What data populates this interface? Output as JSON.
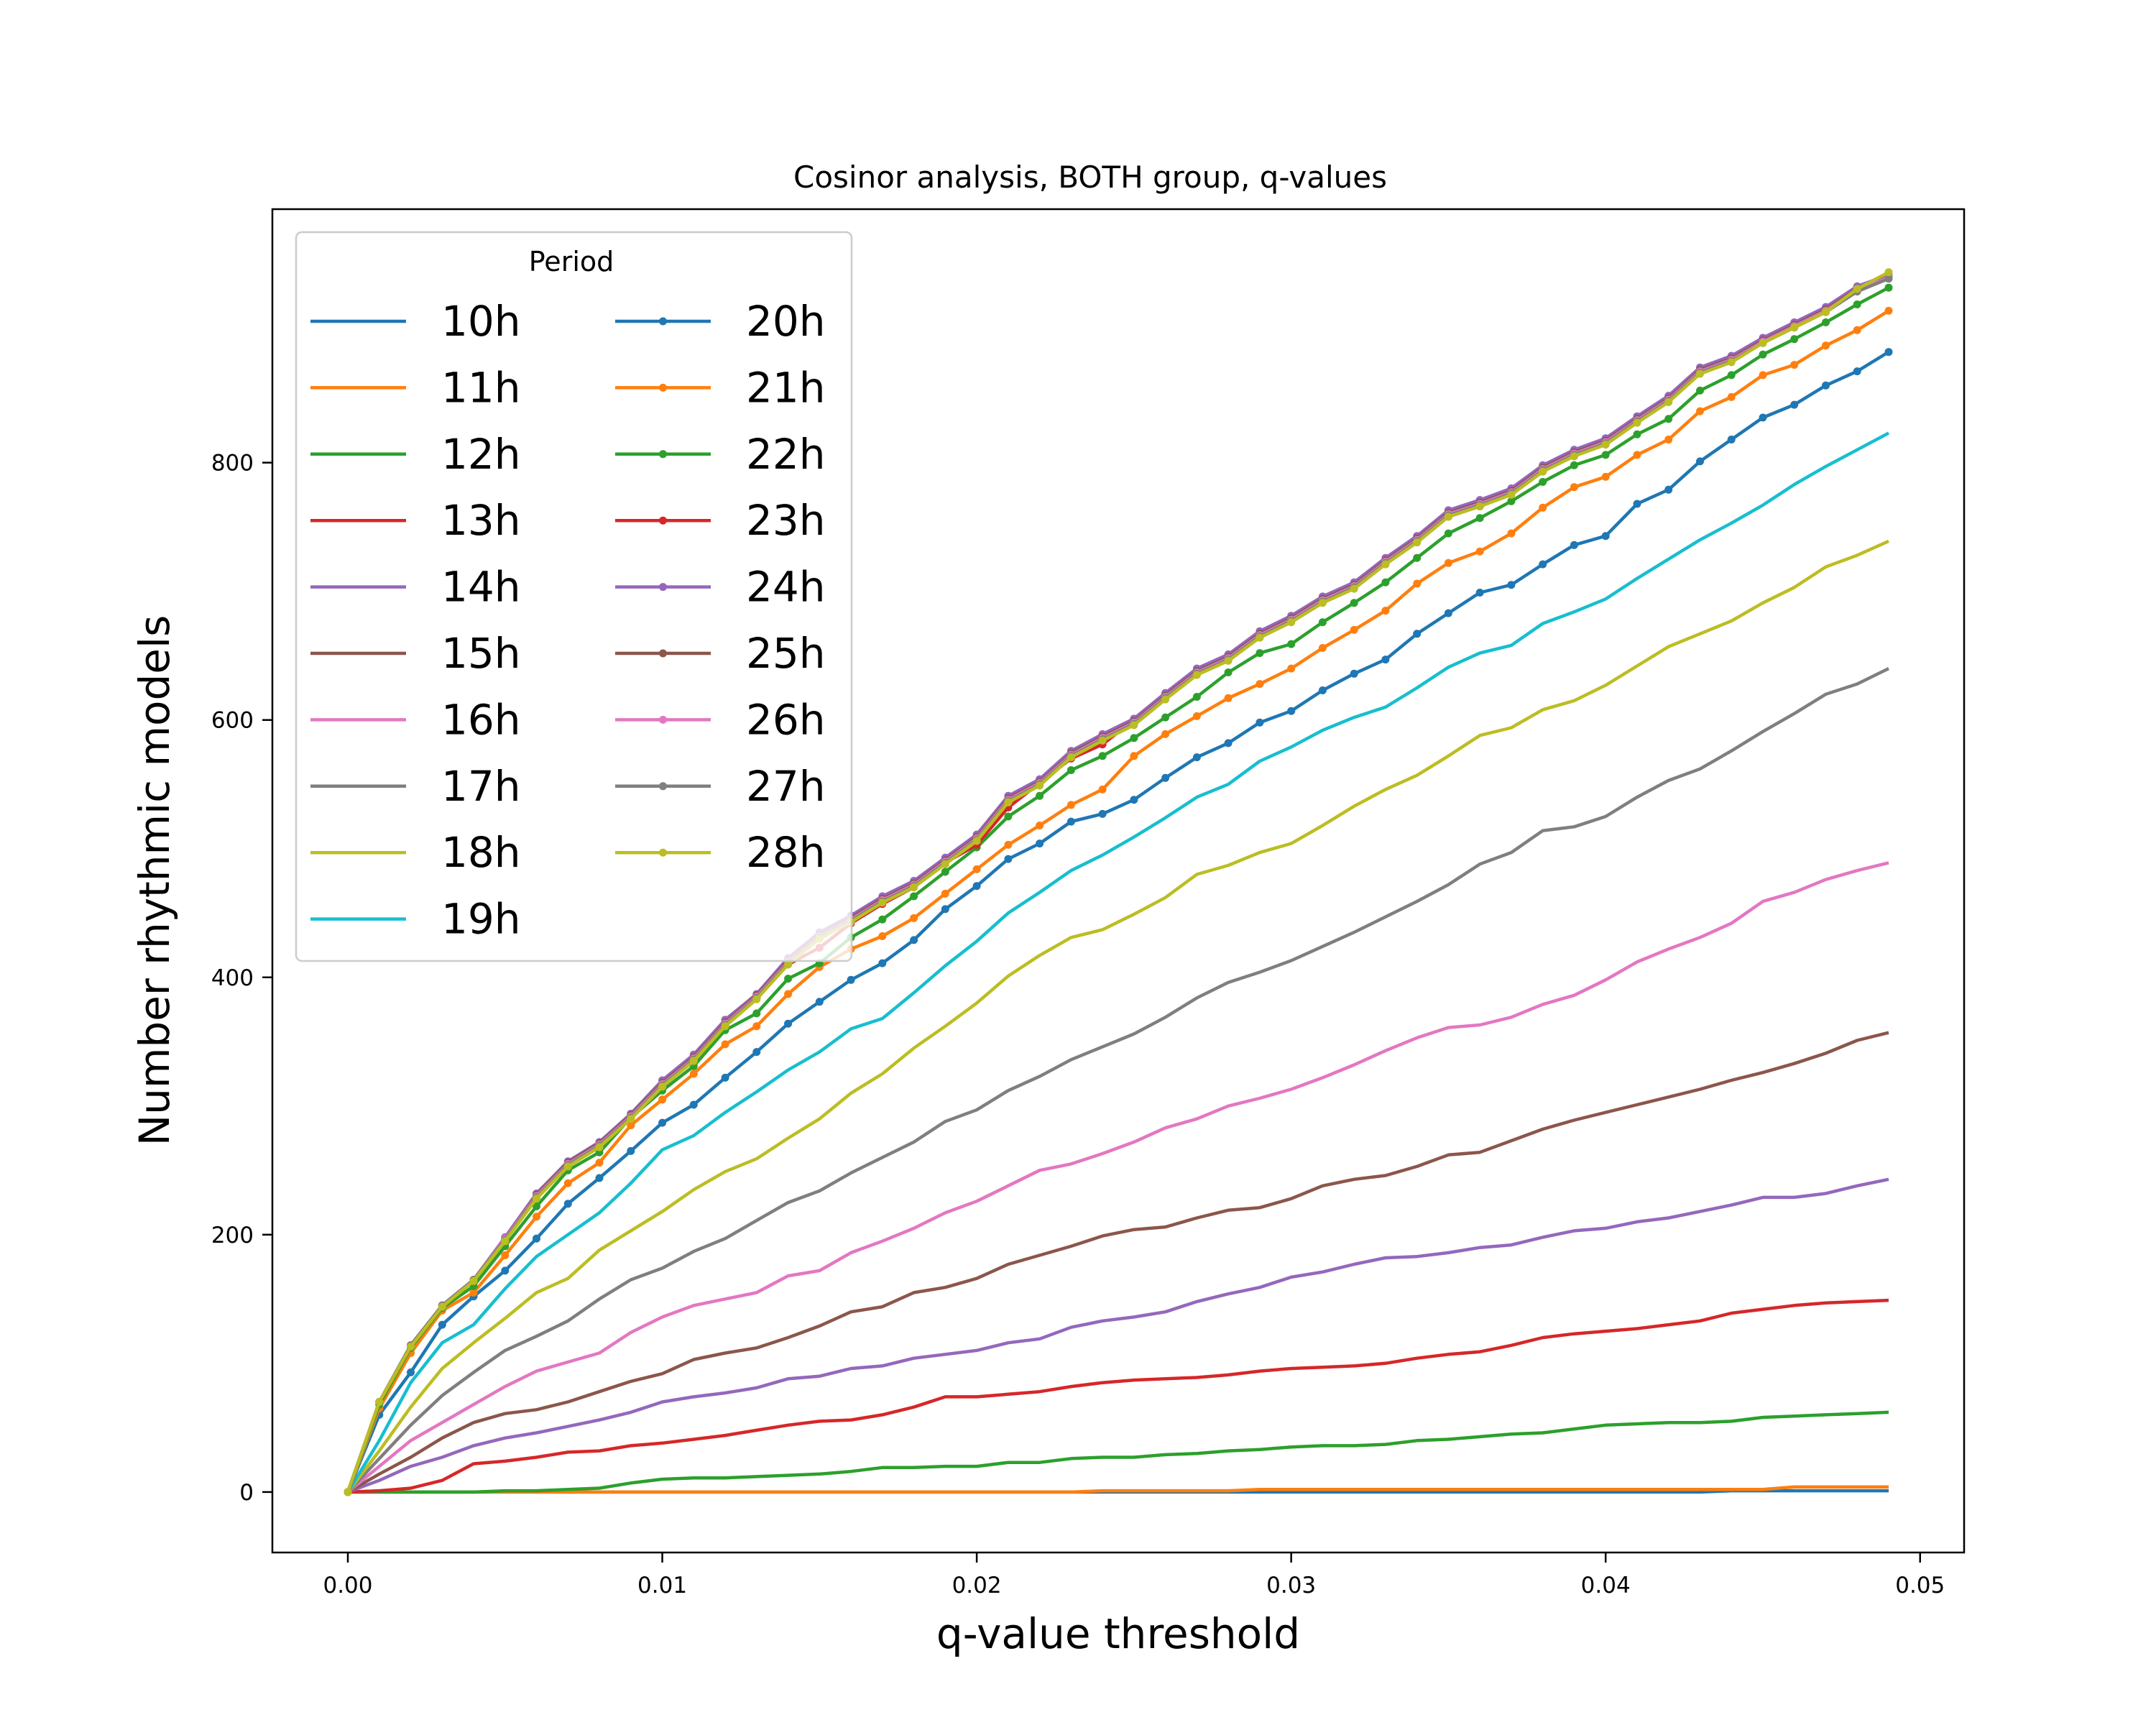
{
  "chart_data": {
    "type": "line",
    "title": "Cosinor analysis, BOTH group, q-values",
    "xlabel": "q-value threshold",
    "ylabel": "Number rhythmic models",
    "xlim": [
      -0.0024,
      0.0514
    ],
    "ylim": [
      -47,
      997
    ],
    "xticks": [
      0.0,
      0.01,
      0.02,
      0.03,
      0.04,
      0.05
    ],
    "xtick_labels": [
      "0.00",
      "0.01",
      "0.02",
      "0.03",
      "0.04",
      "0.05"
    ],
    "yticks": [
      0,
      200,
      400,
      600,
      800
    ],
    "ytick_labels": [
      "0",
      "200",
      "400",
      "600",
      "800"
    ],
    "grid": false,
    "legend": {
      "title": "Period",
      "placement": "top-left",
      "columns": 2
    },
    "x": [
      0.0,
      0.001,
      0.002,
      0.003,
      0.004,
      0.005,
      0.006,
      0.007,
      0.008,
      0.009,
      0.01,
      0.011,
      0.012,
      0.013,
      0.014,
      0.015,
      0.016,
      0.017,
      0.018,
      0.019,
      0.02,
      0.021,
      0.022,
      0.023,
      0.024,
      0.025,
      0.026,
      0.027,
      0.028,
      0.029,
      0.03,
      0.031,
      0.032,
      0.033,
      0.034,
      0.035,
      0.036,
      0.037,
      0.038,
      0.039,
      0.04,
      0.041,
      0.042,
      0.043,
      0.044,
      0.045,
      0.046,
      0.047,
      0.048,
      0.049
    ],
    "series": [
      {
        "name": "10h",
        "color": "#1f77b4",
        "marker": false,
        "values": [
          0,
          0,
          0,
          0,
          0,
          0,
          0,
          0,
          0,
          0,
          0,
          0,
          0,
          0,
          0,
          0,
          0,
          0,
          0,
          0,
          0,
          0,
          0,
          0,
          0,
          0,
          0,
          0,
          0,
          0,
          0,
          0,
          0,
          0,
          0,
          0,
          0,
          0,
          0,
          0,
          0,
          0,
          0,
          0,
          1,
          1,
          1,
          1,
          1,
          1
        ]
      },
      {
        "name": "11h",
        "color": "#ff7f0e",
        "marker": false,
        "values": [
          0,
          0,
          0,
          0,
          0,
          0,
          0,
          0,
          0,
          0,
          0,
          0,
          0,
          0,
          0,
          0,
          0,
          0,
          0,
          0,
          0,
          0,
          0,
          0,
          1,
          1,
          1,
          1,
          1,
          2,
          2,
          2,
          2,
          2,
          2,
          2,
          2,
          2,
          2,
          2,
          2,
          2,
          2,
          2,
          2,
          2,
          4,
          4,
          4,
          4
        ]
      },
      {
        "name": "12h",
        "color": "#2ca02c",
        "marker": false,
        "values": [
          0,
          0,
          0,
          0,
          0,
          1,
          1,
          2,
          3,
          7,
          10,
          11,
          11,
          12,
          13,
          14,
          16,
          19,
          19,
          20,
          20,
          23,
          23,
          26,
          27,
          27,
          29,
          30,
          32,
          33,
          35,
          36,
          36,
          37,
          40,
          41,
          43,
          45,
          46,
          49,
          52,
          53,
          54,
          54,
          55,
          58,
          59,
          60,
          61,
          62
        ]
      },
      {
        "name": "13h",
        "color": "#d62728",
        "marker": false,
        "values": [
          0,
          1,
          3,
          9,
          22,
          24,
          27,
          31,
          32,
          36,
          38,
          41,
          44,
          48,
          52,
          55,
          56,
          60,
          66,
          74,
          74,
          76,
          78,
          82,
          85,
          87,
          88,
          89,
          91,
          94,
          96,
          97,
          98,
          100,
          104,
          107,
          109,
          114,
          120,
          123,
          125,
          127,
          130,
          133,
          139,
          142,
          145,
          147,
          148,
          149
        ]
      },
      {
        "name": "14h",
        "color": "#9467bd",
        "marker": false,
        "values": [
          0,
          9,
          20,
          27,
          36,
          42,
          46,
          51,
          56,
          62,
          70,
          74,
          77,
          81,
          88,
          90,
          96,
          98,
          104,
          107,
          110,
          116,
          119,
          128,
          133,
          136,
          140,
          148,
          154,
          159,
          167,
          171,
          177,
          182,
          183,
          186,
          190,
          192,
          198,
          203,
          205,
          210,
          213,
          218,
          223,
          229,
          229,
          232,
          238,
          243
        ]
      },
      {
        "name": "15h",
        "color": "#8c564b",
        "marker": false,
        "values": [
          0,
          14,
          27,
          42,
          54,
          61,
          64,
          70,
          78,
          86,
          92,
          103,
          108,
          112,
          120,
          129,
          140,
          144,
          155,
          159,
          166,
          177,
          184,
          191,
          199,
          204,
          206,
          213,
          219,
          221,
          228,
          238,
          243,
          246,
          253,
          262,
          264,
          273,
          282,
          289,
          295,
          301,
          307,
          313,
          320,
          326,
          333,
          341,
          351,
          357
        ]
      },
      {
        "name": "16h",
        "color": "#e377c2",
        "marker": false,
        "values": [
          0,
          20,
          40,
          54,
          68,
          82,
          94,
          101,
          108,
          124,
          136,
          145,
          150,
          155,
          168,
          172,
          186,
          195,
          205,
          217,
          226,
          238,
          250,
          255,
          263,
          272,
          283,
          290,
          300,
          306,
          313,
          322,
          332,
          343,
          353,
          361,
          363,
          369,
          379,
          386,
          398,
          412,
          422,
          431,
          442,
          459,
          466,
          476,
          483,
          489
        ]
      },
      {
        "name": "17h",
        "color": "#7f7f7f",
        "marker": false,
        "values": [
          0,
          26,
          52,
          75,
          93,
          110,
          121,
          133,
          150,
          165,
          174,
          187,
          197,
          211,
          225,
          234,
          248,
          260,
          272,
          288,
          297,
          312,
          323,
          336,
          346,
          356,
          369,
          384,
          396,
          404,
          413,
          424,
          435,
          447,
          459,
          472,
          488,
          497,
          514,
          517,
          525,
          540,
          553,
          562,
          576,
          591,
          605,
          620,
          628,
          640
        ]
      },
      {
        "name": "18h",
        "color": "#bcbd22",
        "marker": false,
        "values": [
          0,
          32,
          66,
          96,
          116,
          135,
          155,
          166,
          188,
          203,
          218,
          235,
          249,
          259,
          275,
          290,
          310,
          325,
          345,
          362,
          380,
          401,
          417,
          431,
          437,
          449,
          462,
          480,
          487,
          497,
          504,
          518,
          533,
          546,
          557,
          572,
          588,
          594,
          608,
          615,
          627,
          642,
          657,
          667,
          677,
          691,
          703,
          719,
          728,
          739
        ]
      },
      {
        "name": "19h",
        "color": "#17becf",
        "marker": false,
        "values": [
          0,
          40,
          85,
          116,
          130,
          158,
          183,
          200,
          217,
          240,
          266,
          277,
          295,
          311,
          328,
          342,
          360,
          368,
          388,
          409,
          428,
          450,
          466,
          483,
          495,
          509,
          524,
          540,
          550,
          568,
          579,
          592,
          602,
          610,
          625,
          641,
          652,
          658,
          675,
          684,
          694,
          710,
          725,
          740,
          753,
          767,
          783,
          797,
          810,
          823
        ]
      },
      {
        "name": "20h",
        "color": "#1f77b4",
        "marker": true,
        "values": [
          0,
          60,
          93,
          130,
          152,
          172,
          197,
          224,
          244,
          265,
          287,
          301,
          322,
          342,
          364,
          381,
          398,
          411,
          429,
          453,
          471,
          492,
          504,
          521,
          527,
          538,
          555,
          571,
          582,
          598,
          607,
          623,
          636,
          647,
          667,
          683,
          699,
          705,
          721,
          736,
          743,
          768,
          779,
          801,
          818,
          835,
          845,
          860,
          871,
          886
        ]
      },
      {
        "name": "21h",
        "color": "#ff7f0e",
        "marker": true,
        "values": [
          0,
          65,
          108,
          141,
          155,
          184,
          214,
          240,
          256,
          285,
          305,
          325,
          348,
          362,
          387,
          408,
          422,
          432,
          446,
          465,
          484,
          503,
          518,
          534,
          546,
          572,
          589,
          603,
          617,
          628,
          640,
          656,
          670,
          685,
          706,
          722,
          731,
          745,
          765,
          781,
          789,
          806,
          818,
          840,
          851,
          868,
          876,
          891,
          903,
          918
        ]
      },
      {
        "name": "22h",
        "color": "#2ca02c",
        "marker": true,
        "values": [
          0,
          68,
          112,
          143,
          160,
          191,
          222,
          250,
          264,
          291,
          312,
          331,
          359,
          372,
          399,
          411,
          431,
          445,
          463,
          482,
          501,
          525,
          541,
          561,
          572,
          586,
          602,
          618,
          637,
          652,
          659,
          676,
          691,
          707,
          726,
          745,
          757,
          770,
          785,
          798,
          806,
          822,
          834,
          856,
          868,
          884,
          896,
          909,
          923,
          936
        ]
      },
      {
        "name": "23h",
        "color": "#d62728",
        "marker": true,
        "values": [
          0,
          70,
          114,
          145,
          164,
          196,
          229,
          255,
          270,
          292,
          316,
          337,
          363,
          385,
          410,
          423,
          442,
          457,
          470,
          489,
          503,
          532,
          551,
          570,
          581,
          600,
          620,
          636,
          647,
          664,
          677,
          694,
          705,
          721,
          739,
          758,
          766,
          778,
          794,
          805,
          816,
          834,
          850,
          870,
          880,
          894,
          907,
          919,
          934,
          945
        ]
      },
      {
        "name": "24h",
        "color": "#9467bd",
        "marker": true,
        "values": [
          0,
          70,
          114,
          145,
          165,
          198,
          232,
          257,
          272,
          294,
          320,
          340,
          367,
          387,
          415,
          435,
          448,
          463,
          475,
          493,
          511,
          541,
          554,
          576,
          589,
          601,
          621,
          640,
          651,
          669,
          681,
          696,
          707,
          726,
          743,
          763,
          771,
          780,
          798,
          810,
          819,
          836,
          852,
          874,
          883,
          897,
          909,
          921,
          937,
          946
        ]
      },
      {
        "name": "25h",
        "color": "#8c564b",
        "marker": true,
        "values": [
          0,
          70,
          114,
          145,
          165,
          197,
          231,
          256,
          271,
          293,
          318,
          338,
          365,
          386,
          413,
          433,
          446,
          461,
          473,
          491,
          509,
          539,
          552,
          574,
          587,
          599,
          619,
          638,
          649,
          667,
          679,
          694,
          705,
          724,
          741,
          761,
          769,
          778,
          796,
          808,
          817,
          834,
          850,
          872,
          881,
          895,
          907,
          919,
          935,
          944
        ]
      },
      {
        "name": "26h",
        "color": "#e377c2",
        "marker": true,
        "values": [
          0,
          70,
          114,
          145,
          165,
          197,
          230,
          255,
          270,
          292,
          317,
          337,
          364,
          385,
          412,
          432,
          445,
          460,
          472,
          490,
          508,
          538,
          551,
          573,
          586,
          598,
          618,
          637,
          648,
          666,
          678,
          693,
          704,
          723,
          740,
          760,
          768,
          777,
          795,
          807,
          816,
          833,
          849,
          871,
          880,
          894,
          906,
          918,
          934,
          944
        ]
      },
      {
        "name": "27h",
        "color": "#7f7f7f",
        "marker": true,
        "values": [
          0,
          70,
          114,
          145,
          165,
          196,
          229,
          254,
          269,
          291,
          316,
          336,
          363,
          384,
          411,
          431,
          444,
          459,
          471,
          489,
          507,
          537,
          550,
          572,
          585,
          597,
          617,
          636,
          647,
          665,
          677,
          692,
          703,
          722,
          739,
          759,
          767,
          776,
          794,
          806,
          815,
          832,
          848,
          870,
          879,
          893,
          905,
          917,
          933,
          943
        ]
      },
      {
        "name": "28h",
        "color": "#bcbd22",
        "marker": true,
        "values": [
          0,
          70,
          113,
          144,
          164,
          195,
          228,
          253,
          268,
          290,
          315,
          335,
          362,
          383,
          410,
          430,
          443,
          458,
          470,
          488,
          506,
          536,
          549,
          571,
          584,
          596,
          616,
          635,
          646,
          664,
          676,
          691,
          702,
          721,
          738,
          758,
          766,
          775,
          793,
          805,
          814,
          831,
          847,
          869,
          878,
          893,
          905,
          917,
          935,
          948
        ]
      }
    ]
  }
}
